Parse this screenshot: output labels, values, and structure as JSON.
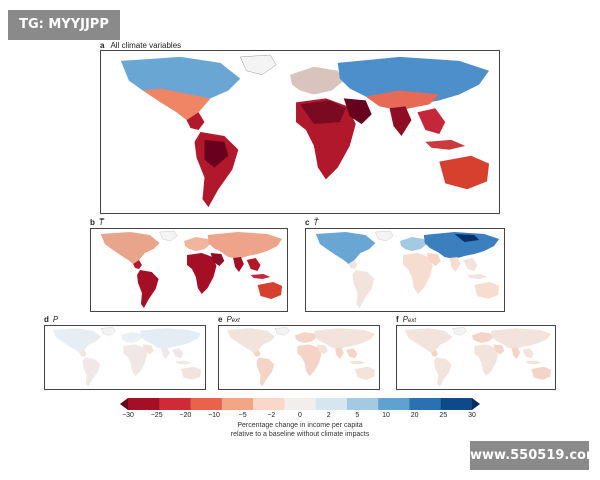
{
  "watermark_top": "TG: MYYJJPP",
  "watermark_bottom": "www.550519.com",
  "panels": {
    "a": {
      "letter": "a",
      "title": "All climate variables"
    },
    "b": {
      "letter": "b",
      "title": "T̅"
    },
    "c": {
      "letter": "c",
      "title": "T̃"
    },
    "d": {
      "letter": "d",
      "title": "P"
    },
    "e": {
      "letter": "e",
      "title": "P",
      "title_sub": "ext"
    },
    "f": {
      "letter": "f",
      "title": "P",
      "title_sub": "ext"
    }
  },
  "colorbar": {
    "ticks": [
      "−30",
      "−25",
      "−20",
      "−10",
      "−5",
      "−2",
      "0",
      "2",
      "5",
      "10",
      "20",
      "25",
      "30"
    ],
    "caption_line1": "Percentage change in income per capita",
    "caption_line2": "relative to a baseline without climate impacts",
    "colors": [
      "#67001f",
      "#a50f26",
      "#cf2b34",
      "#e8624c",
      "#f4a583",
      "#f9d8c7",
      "#f2eeeb",
      "#d6e6f1",
      "#a4c9e2",
      "#5fa1d1",
      "#2a71b2",
      "#0d4a8a",
      "#082a5e"
    ]
  }
}
